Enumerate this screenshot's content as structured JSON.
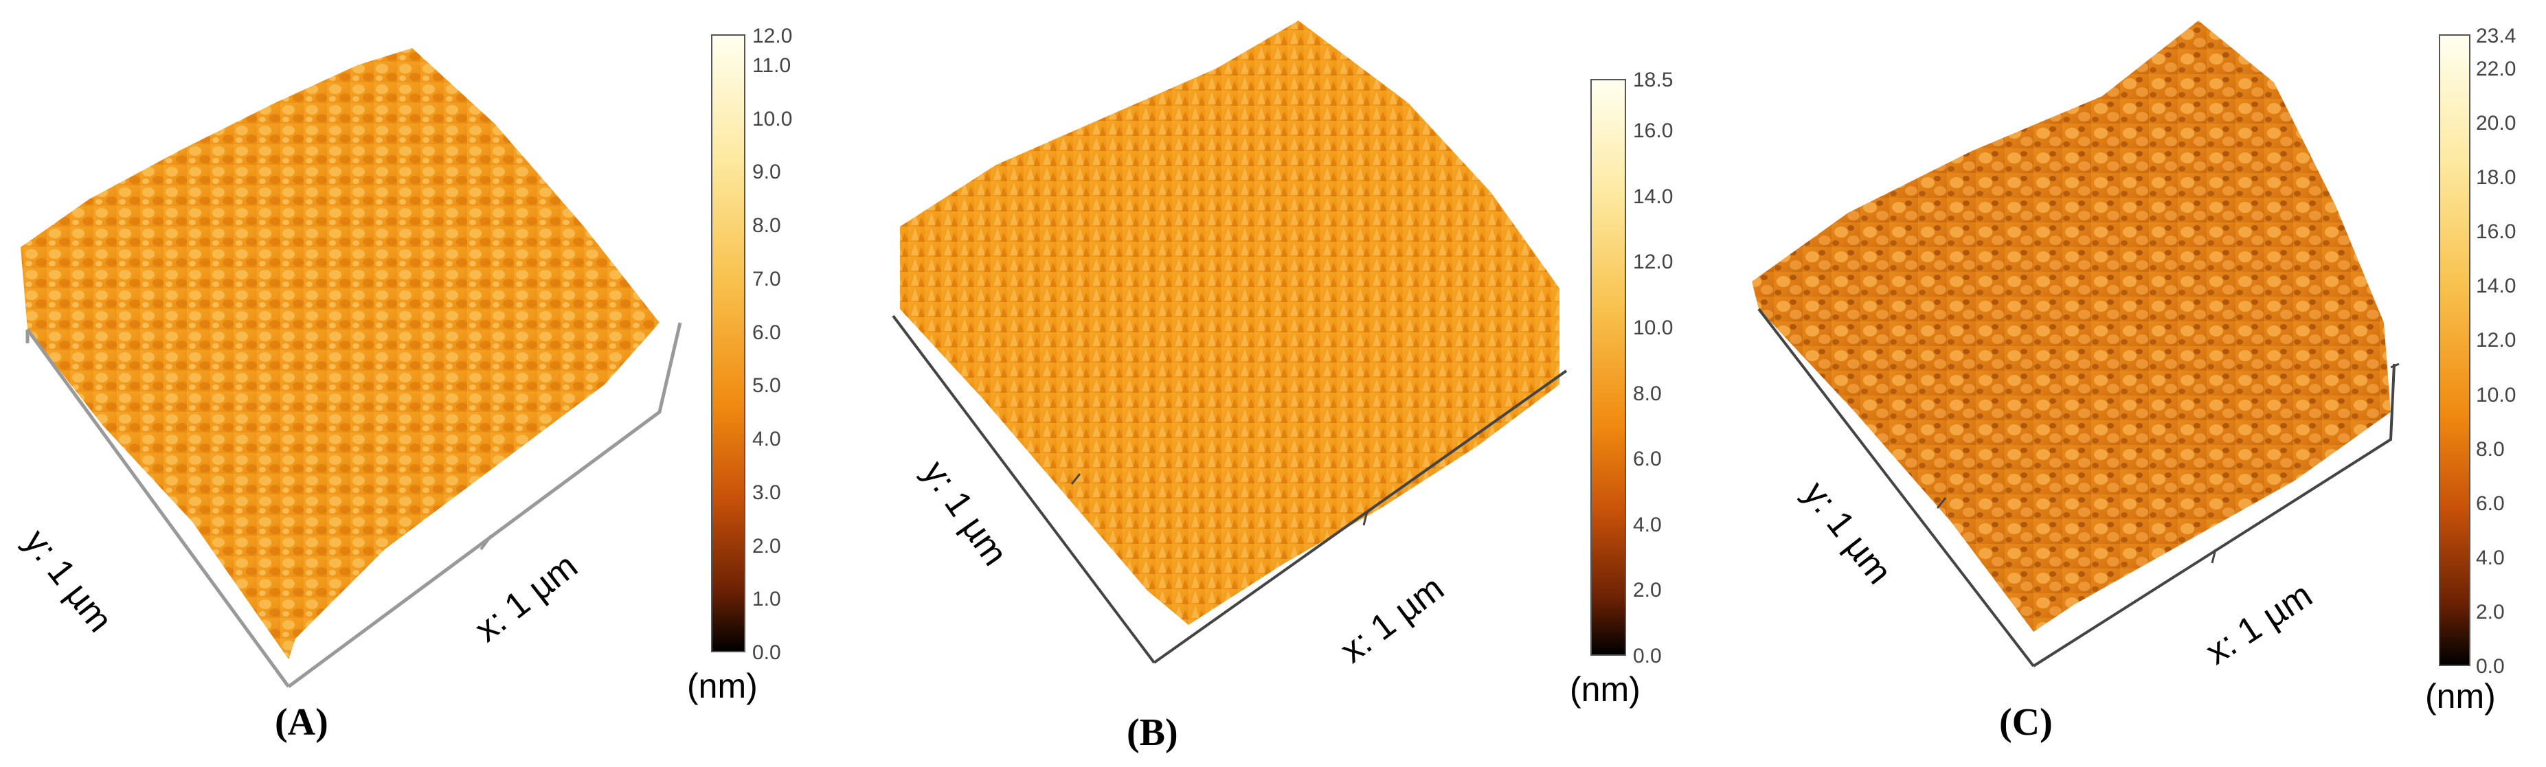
{
  "panels": [
    {
      "caption": "(A)",
      "x_axis_label": "x: 1 µm",
      "y_axis_label": "y: 1 µm",
      "unit": "(nm)",
      "colorbar": {
        "max_label": "12.0",
        "ticks": [
          "11.0",
          "10.0",
          "9.0",
          "8.0",
          "7.0",
          "6.0",
          "5.0",
          "4.0",
          "3.0",
          "2.0",
          "1.0",
          "0.0"
        ]
      }
    },
    {
      "caption": "(B)",
      "x_axis_label": "x: 1 µm",
      "y_axis_label": "y: 1 µm",
      "unit": "(nm)",
      "colorbar": {
        "max_label": "18.5",
        "ticks": [
          "16.0",
          "14.0",
          "12.0",
          "10.0",
          "8.0",
          "6.0",
          "4.0",
          "2.0",
          "0.0"
        ]
      }
    },
    {
      "caption": "(C)",
      "x_axis_label": "x: 1 µm",
      "y_axis_label": "y: 1 µm",
      "unit": "(nm)",
      "colorbar": {
        "max_label": "23.4",
        "ticks": [
          "22.0",
          "20.0",
          "18.0",
          "16.0",
          "14.0",
          "12.0",
          "10.0",
          "8.0",
          "6.0",
          "4.0",
          "2.0",
          "0.0"
        ]
      }
    }
  ],
  "colors": {
    "surface_light": "#f7b13a",
    "surface_mid": "#ee8a14",
    "surface_dark": "#b65207",
    "colorbar_top": "#fffff0",
    "colorbar_mid": "#f08a10",
    "colorbar_bottom": "#000000"
  }
}
